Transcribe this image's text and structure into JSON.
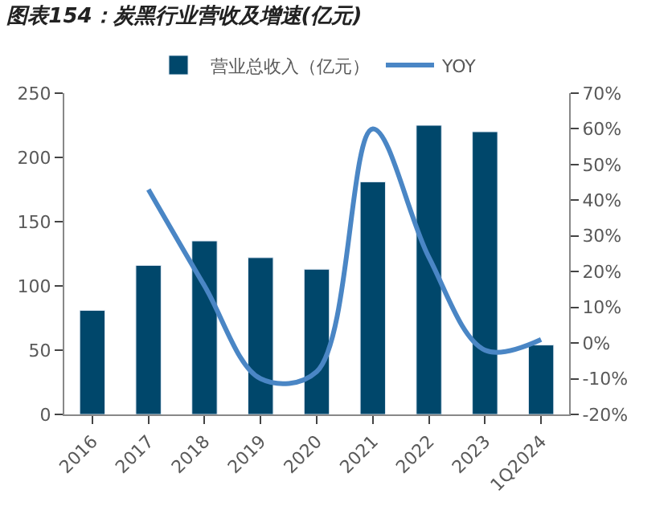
{
  "chart_data": {
    "type": "bar",
    "title": "图表154：炭黑行业营收及增速(亿元)",
    "categories": [
      "2016",
      "2017",
      "2018",
      "2019",
      "2020",
      "2021",
      "2022",
      "2023",
      "1Q2024"
    ],
    "series": [
      {
        "name": "营业总收入（亿元）",
        "color": "#00476b",
        "values": [
          81,
          116,
          135,
          122,
          113,
          181,
          225,
          220,
          54
        ]
      },
      {
        "name": "YOY",
        "type": "line",
        "axis": "y2",
        "color": "#4a86c5",
        "values": [
          null,
          43,
          16,
          -10,
          -8,
          60,
          24,
          -2,
          1
        ]
      }
    ],
    "ylim": [
      0,
      250
    ],
    "yticks": [
      0,
      50,
      100,
      150,
      200,
      250
    ],
    "y2lim": [
      -20,
      70
    ],
    "y2ticks": [
      {
        "value": -20,
        "label": "-20%"
      },
      {
        "value": -10,
        "label": "-10%"
      },
      {
        "value": 0,
        "label": "0%"
      },
      {
        "value": 10,
        "label": "10%"
      },
      {
        "value": 20,
        "label": "20%"
      },
      {
        "value": 30,
        "label": "30%"
      },
      {
        "value": 40,
        "label": "40%"
      },
      {
        "value": 50,
        "label": "50%"
      },
      {
        "value": 60,
        "label": "60%"
      },
      {
        "value": 70,
        "label": "70%"
      }
    ],
    "legend": "top",
    "marker": "none",
    "line_style": "solid"
  }
}
